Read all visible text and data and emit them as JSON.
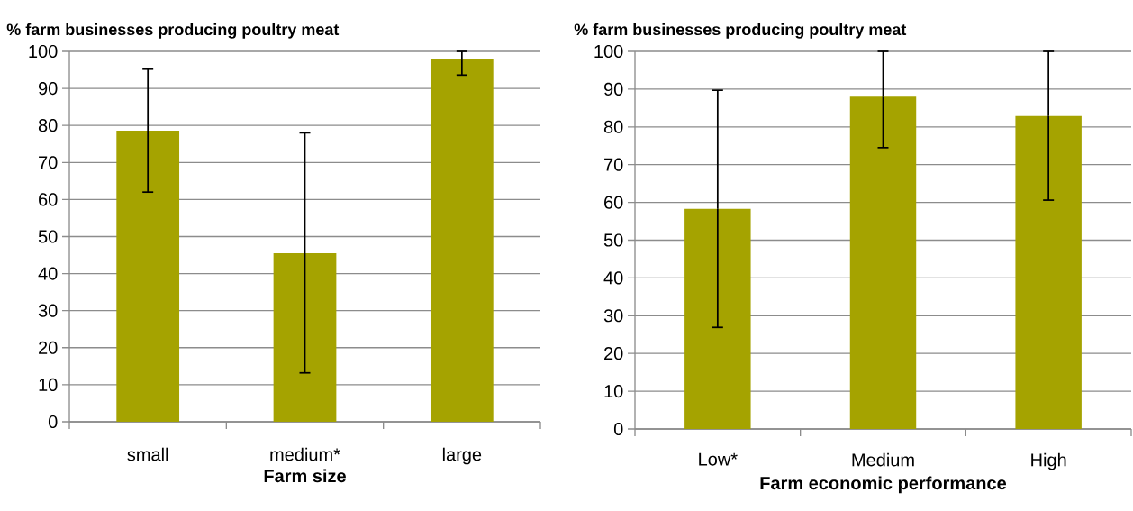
{
  "chart_data": [
    {
      "type": "bar",
      "title": "% farm businesses producing poultry meat",
      "xlabel": "Farm size",
      "categories": [
        "small",
        "medium*",
        "large"
      ],
      "values": [
        78.6,
        45.5,
        97.8
      ],
      "color": "#a5a300",
      "errors": [
        [
          62,
          95.2
        ],
        [
          13.2,
          78
        ],
        [
          93.6,
          100
        ]
      ],
      "ylim": [
        0,
        100
      ],
      "yticks": [
        0,
        10,
        20,
        30,
        40,
        50,
        60,
        70,
        80,
        90,
        100
      ],
      "grid": "y"
    },
    {
      "type": "bar",
      "title": "% farm businesses producing poultry meat",
      "xlabel": "Farm economic performance",
      "categories": [
        "Low*",
        "Medium",
        "High"
      ],
      "values": [
        58.3,
        88,
        82.9
      ],
      "color": "#a5a300",
      "errors": [
        [
          26.9,
          89.7
        ],
        [
          74.5,
          100
        ],
        [
          60.6,
          100
        ]
      ],
      "ylim": [
        0,
        100
      ],
      "yticks": [
        0,
        10,
        20,
        30,
        40,
        50,
        60,
        70,
        80,
        90,
        100
      ],
      "grid": "y"
    }
  ]
}
